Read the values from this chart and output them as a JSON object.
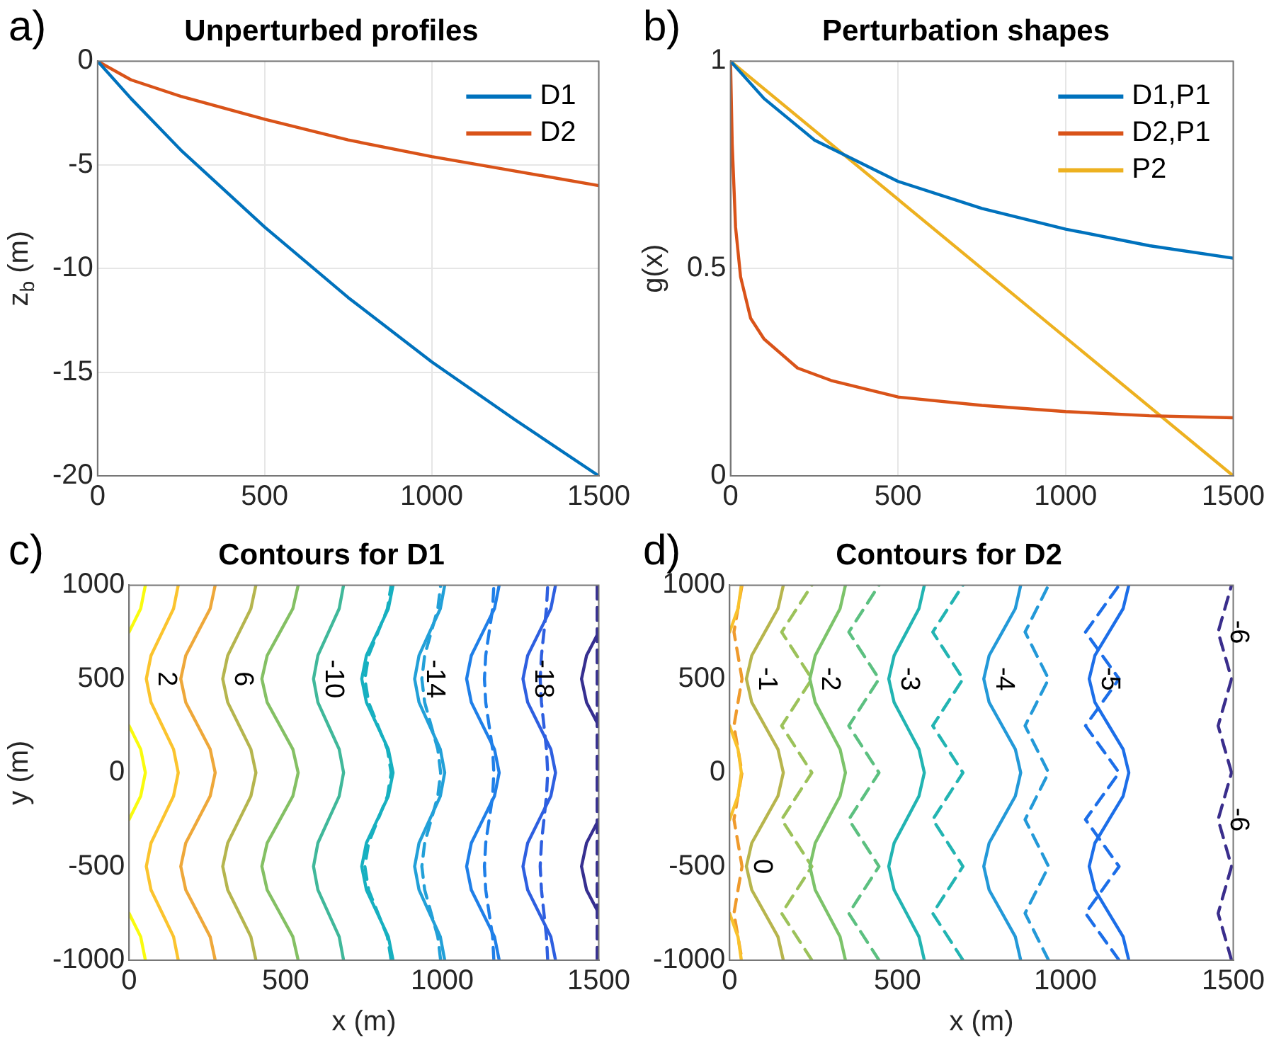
{
  "chart_data": [
    {
      "type": "line",
      "title": "Unperturbed profiles",
      "ylabel": "z$_{b}$ (m)",
      "annotations": [
        "a)"
      ],
      "xlim": [
        0,
        1500
      ],
      "xticks": [
        0,
        500,
        1000,
        1500
      ],
      "ylim": [
        -20,
        0
      ],
      "yticks": [
        -20,
        -15,
        -10,
        -5,
        0
      ],
      "grid": true,
      "legend": "top right",
      "line_style": "solid",
      "series": [
        {
          "name": "D1",
          "color": "#0072bd",
          "x": [
            0,
            100,
            250,
            500,
            750,
            1000,
            1250,
            1500
          ],
          "values": [
            0,
            -1.8,
            -4.3,
            -8,
            -11.4,
            -14.5,
            -17.3,
            -20
          ]
        },
        {
          "name": "D2",
          "color": "#d95319",
          "x": [
            0,
            100,
            250,
            500,
            750,
            1000,
            1250,
            1500
          ],
          "values": [
            0,
            -0.9,
            -1.7,
            -2.8,
            -3.8,
            -4.6,
            -5.3,
            -6
          ]
        }
      ]
    },
    {
      "type": "line",
      "title": "Perturbation shapes",
      "ylabel": "g(x)",
      "annotations": [
        "b)"
      ],
      "xlim": [
        0,
        1500
      ],
      "xticks": [
        0,
        500,
        1000,
        1500
      ],
      "ylim": [
        0,
        1
      ],
      "yticks": [
        0,
        0.5,
        1
      ],
      "grid": true,
      "legend": "top right",
      "line_style": "solid",
      "series": [
        {
          "name": "D1,P1",
          "color": "#0072bd",
          "x": [
            0,
            100,
            250,
            500,
            750,
            1000,
            1250,
            1500
          ],
          "values": [
            1,
            0.91,
            0.81,
            0.71,
            0.645,
            0.595,
            0.555,
            0.525
          ]
        },
        {
          "name": "D2,P1",
          "color": "#d95319",
          "x": [
            0,
            5,
            15,
            30,
            60,
            100,
            200,
            300,
            500,
            750,
            1000,
            1250,
            1500
          ],
          "values": [
            1,
            0.8,
            0.6,
            0.48,
            0.38,
            0.33,
            0.26,
            0.23,
            0.19,
            0.17,
            0.155,
            0.145,
            0.14
          ]
        },
        {
          "name": "P2",
          "color": "#edb120",
          "x": [
            0,
            1500
          ],
          "values": [
            1,
            0
          ]
        }
      ]
    },
    {
      "type": "line",
      "title": "Contours for D1",
      "xlabel": "x (m)",
      "ylabel": "y (m)",
      "xlim": [
        0,
        1500
      ],
      "xticks": [
        0,
        500,
        1000,
        1500
      ],
      "ylim": [
        -1000,
        1000
      ],
      "yticks": [
        -1000,
        -500,
        0,
        500,
        1000
      ],
      "annotations": [
        "c)"
      ],
      "series": [
        {
          "color": "#f9fb0e",
          "line_style": "solid",
          "x": [
            52,
            37,
            0,
            null,
            null,
            null,
            0,
            37,
            52,
            37,
            0,
            null,
            null,
            null,
            0,
            37,
            52
          ],
          "values": [
            -1000,
            -875,
            -750,
            null,
            null,
            null,
            -250,
            -125,
            0,
            125,
            250,
            null,
            null,
            null,
            750,
            875,
            1000
          ]
        },
        {
          "name": "2",
          "color": "#fbc42e",
          "line_style": "solid",
          "x": [
            157,
            142,
            106,
            70,
            55,
            70,
            106,
            142,
            157,
            142,
            106,
            70,
            55,
            70,
            106,
            142,
            157
          ],
          "values": [
            -1000,
            -875,
            -750,
            -625,
            -500,
            -375,
            -250,
            -125,
            0,
            125,
            250,
            375,
            500,
            625,
            750,
            875,
            1000
          ]
        },
        {
          "color": "#eea83a",
          "line_style": "solid",
          "x": [
            275,
            259,
            220,
            181,
            165,
            181,
            220,
            259,
            275,
            259,
            220,
            181,
            165,
            181,
            220,
            259,
            275
          ],
          "values": [
            -1000,
            -875,
            -750,
            -625,
            -500,
            -375,
            -250,
            -125,
            0,
            125,
            250,
            375,
            500,
            625,
            750,
            875,
            1000
          ]
        },
        {
          "name": "6",
          "color": "#b5b54e",
          "line_style": "solid",
          "x": [
            405,
            389,
            352,
            315,
            299,
            315,
            352,
            389,
            405,
            389,
            352,
            315,
            299,
            315,
            352,
            389,
            405
          ],
          "values": [
            -1000,
            -875,
            -750,
            -625,
            -500,
            -375,
            -250,
            -125,
            0,
            125,
            250,
            375,
            500,
            625,
            750,
            875,
            1000
          ]
        },
        {
          "color": "#84c064",
          "line_style": "solid",
          "x": [
            540,
            523,
            482,
            441,
            424,
            441,
            482,
            523,
            540,
            523,
            482,
            441,
            424,
            441,
            482,
            523,
            540
          ],
          "values": [
            -1000,
            -875,
            -750,
            -625,
            -500,
            -375,
            -250,
            -125,
            0,
            125,
            250,
            375,
            500,
            625,
            750,
            875,
            1000
          ]
        },
        {
          "name": "-10",
          "color": "#40b89a",
          "line_style": "solid",
          "x": [
            685,
            671,
            637,
            603,
            589,
            603,
            637,
            671,
            685,
            671,
            637,
            603,
            589,
            603,
            637,
            671,
            685
          ],
          "values": [
            -1000,
            -875,
            -750,
            -625,
            -500,
            -375,
            -250,
            -125,
            0,
            125,
            250,
            375,
            500,
            625,
            750,
            875,
            1000
          ]
        },
        {
          "color": "#17b0c0",
          "line_style": "solid",
          "x": [
            843,
            828,
            793,
            758,
            743,
            758,
            793,
            828,
            843,
            828,
            793,
            758,
            743,
            758,
            793,
            828,
            843
          ],
          "values": [
            -1000,
            -875,
            -750,
            -625,
            -500,
            -375,
            -250,
            -125,
            0,
            125,
            250,
            375,
            500,
            625,
            750,
            875,
            1000
          ]
        },
        {
          "name": "-14",
          "color": "#22a0d8",
          "line_style": "solid",
          "x": [
            1008,
            994,
            960,
            926,
            912,
            926,
            960,
            994,
            1008,
            994,
            960,
            926,
            912,
            926,
            960,
            994,
            1008
          ],
          "values": [
            -1000,
            -875,
            -750,
            -625,
            -500,
            -375,
            -250,
            -125,
            0,
            125,
            250,
            375,
            500,
            625,
            750,
            875,
            1000
          ]
        },
        {
          "color": "#1f7fe8",
          "line_style": "solid",
          "x": [
            1182,
            1167,
            1130,
            1093,
            1078,
            1093,
            1130,
            1167,
            1182,
            1167,
            1130,
            1093,
            1078,
            1093,
            1130,
            1167,
            1182
          ],
          "values": [
            -1000,
            -875,
            -750,
            -625,
            -500,
            -375,
            -250,
            -125,
            0,
            125,
            250,
            375,
            500,
            625,
            750,
            875,
            1000
          ]
        },
        {
          "name": "-18",
          "color": "#2e5fe0",
          "line_style": "solid",
          "x": [
            1362,
            1347,
            1310,
            1273,
            1258,
            1273,
            1310,
            1347,
            1362,
            1347,
            1310,
            1273,
            1258,
            1273,
            1310,
            1347,
            1362
          ],
          "values": [
            -1000,
            -875,
            -750,
            -625,
            -500,
            -375,
            -250,
            -125,
            0,
            125,
            250,
            375,
            500,
            625,
            750,
            875,
            1000
          ]
        },
        {
          "color": "#362f90",
          "line_style": "solid",
          "x": [
            null,
            null,
            1500,
            1461,
            1445,
            1461,
            1500,
            null,
            null,
            null,
            1500,
            1461,
            1445,
            1461,
            1500,
            null,
            null
          ],
          "values": [
            null,
            null,
            -750,
            -625,
            -500,
            -375,
            -250,
            null,
            null,
            null,
            250,
            375,
            500,
            625,
            750,
            null,
            null
          ]
        },
        {
          "color": "#17b0c0",
          "line_style": "dashed",
          "x": [
            837,
            825,
            795,
            765,
            753,
            765,
            795,
            825,
            837,
            825,
            795,
            765,
            753,
            765,
            795,
            825,
            837
          ],
          "values": [
            -1000,
            -875,
            -750,
            -625,
            -500,
            -375,
            -250,
            -125,
            0,
            125,
            250,
            375,
            500,
            625,
            750,
            875,
            1000
          ]
        },
        {
          "color": "#22a0d8",
          "line_style": "dashed",
          "x": [
            995,
            986,
            965,
            944,
            935,
            944,
            965,
            986,
            995,
            986,
            965,
            944,
            935,
            944,
            965,
            986,
            995
          ],
          "values": [
            -1000,
            -875,
            -750,
            -625,
            -500,
            -375,
            -250,
            -125,
            0,
            125,
            250,
            375,
            500,
            625,
            750,
            875,
            1000
          ]
        },
        {
          "color": "#1f7fe8",
          "line_style": "dashed",
          "x": [
            1165,
            1161,
            1150,
            1139,
            1135,
            1139,
            1150,
            1161,
            1165,
            1161,
            1150,
            1139,
            1135,
            1139,
            1150,
            1161,
            1165
          ],
          "values": [
            -1000,
            -875,
            -750,
            -625,
            -500,
            -375,
            -250,
            -125,
            0,
            125,
            250,
            375,
            500,
            625,
            750,
            875,
            1000
          ]
        },
        {
          "color": "#2e5fe0",
          "line_style": "dashed",
          "x": [
            1337,
            1333,
            1325,
            1317,
            1313,
            1317,
            1325,
            1333,
            1337,
            1333,
            1325,
            1317,
            1313,
            1317,
            1325,
            1333,
            1337
          ],
          "values": [
            -1000,
            -875,
            -750,
            -625,
            -500,
            -375,
            -250,
            -125,
            0,
            125,
            250,
            375,
            500,
            625,
            750,
            875,
            1000
          ]
        },
        {
          "color": "#362f90",
          "line_style": "dashed",
          "x": [
            1495,
            1495,
            1495,
            1495,
            1495,
            1495,
            1495,
            1495,
            1495,
            1495,
            1495,
            1495,
            1495,
            1495,
            1495,
            1495,
            1495
          ],
          "values": [
            -1000,
            -875,
            -750,
            -625,
            -500,
            -375,
            -250,
            -125,
            0,
            125,
            250,
            375,
            500,
            625,
            750,
            875,
            1000
          ]
        }
      ]
    },
    {
      "type": "line",
      "title": "Contours for D2",
      "xlabel": "x (m)",
      "xlim": [
        0,
        1500
      ],
      "xticks": [
        0,
        500,
        1000,
        1500
      ],
      "ylim": [
        -1000,
        1000
      ],
      "yticks": [
        -1000,
        -500,
        0,
        500,
        1000
      ],
      "annotations": [
        "d)"
      ],
      "series": [
        {
          "color": "#f9c22c",
          "line_style": "solid",
          "x": [
            35,
            25,
            0,
            null,
            null,
            null,
            0,
            25,
            35,
            25,
            0,
            null,
            null,
            null,
            0,
            25,
            35
          ],
          "values": [
            -1000,
            -875,
            -750,
            null,
            null,
            null,
            -250,
            -125,
            0,
            125,
            250,
            null,
            null,
            null,
            750,
            875,
            1000
          ]
        },
        {
          "name": "-1",
          "color": "#b7b54d",
          "line_style": "solid",
          "x": [
            160,
            144,
            105,
            66,
            50,
            66,
            105,
            144,
            160,
            144,
            105,
            66,
            50,
            66,
            105,
            144,
            160
          ],
          "values": [
            -1000,
            -875,
            -750,
            -625,
            -500,
            -375,
            -250,
            -125,
            0,
            125,
            250,
            375,
            500,
            625,
            750,
            875,
            1000
          ]
        },
        {
          "name": "-2",
          "color": "#7cc36a",
          "line_style": "solid",
          "x": [
            345,
            329,
            292,
            255,
            239,
            255,
            292,
            329,
            345,
            329,
            292,
            255,
            239,
            255,
            292,
            329,
            345
          ],
          "values": [
            -1000,
            -875,
            -750,
            -625,
            -500,
            -375,
            -250,
            -125,
            0,
            125,
            250,
            375,
            500,
            625,
            750,
            875,
            1000
          ]
        },
        {
          "name": "-3",
          "color": "#22b4b2",
          "line_style": "solid",
          "x": [
            580,
            564,
            527,
            490,
            474,
            490,
            527,
            564,
            580,
            564,
            527,
            490,
            474,
            490,
            527,
            564,
            580
          ],
          "values": [
            -1000,
            -875,
            -750,
            -625,
            -500,
            -375,
            -250,
            -125,
            0,
            125,
            250,
            375,
            500,
            625,
            750,
            875,
            1000
          ]
        },
        {
          "name": "-4",
          "color": "#2399d8",
          "line_style": "solid",
          "x": [
            867,
            851,
            812,
            773,
            757,
            773,
            812,
            851,
            867,
            851,
            812,
            773,
            757,
            773,
            812,
            851,
            867
          ],
          "values": [
            -1000,
            -875,
            -750,
            -625,
            -500,
            -375,
            -250,
            -125,
            0,
            125,
            250,
            375,
            500,
            625,
            750,
            875,
            1000
          ]
        },
        {
          "name": "-5",
          "color": "#1c6ee8",
          "line_style": "solid",
          "x": [
            1189,
            1172,
            1130,
            1088,
            1071,
            1088,
            1130,
            1172,
            1189,
            1172,
            1130,
            1088,
            1071,
            1088,
            1130,
            1172,
            1189
          ],
          "values": [
            -1000,
            -875,
            -750,
            -625,
            -500,
            -375,
            -250,
            -125,
            0,
            125,
            250,
            375,
            500,
            625,
            750,
            875,
            1000
          ]
        },
        {
          "name": "0",
          "color": "#ef9a2c",
          "line_style": "dashed",
          "x": [
            37,
            25,
            13,
            25,
            37,
            25,
            13,
            25,
            37,
            25,
            13,
            25,
            37,
            25,
            13,
            25,
            37
          ],
          "values": [
            1000,
            875,
            750,
            625,
            500,
            375,
            250,
            125,
            0,
            -125,
            -250,
            -375,
            -500,
            -625,
            -750,
            -875,
            -1000
          ]
        },
        {
          "color": "#9cc25a",
          "line_style": "dashed",
          "x": [
            245,
            200,
            155,
            200,
            245,
            200,
            155,
            200,
            245,
            200,
            155,
            200,
            245,
            200,
            155,
            200,
            245
          ],
          "values": [
            -1000,
            -875,
            -750,
            -625,
            -500,
            -375,
            -250,
            -125,
            0,
            125,
            250,
            375,
            500,
            625,
            750,
            875,
            1000
          ]
        },
        {
          "color": "#5cc080",
          "line_style": "dashed",
          "x": [
            445,
            400,
            355,
            400,
            445,
            400,
            355,
            400,
            445,
            400,
            355,
            400,
            445,
            400,
            355,
            400,
            445
          ],
          "values": [
            -1000,
            -875,
            -750,
            -625,
            -500,
            -375,
            -250,
            -125,
            0,
            125,
            250,
            375,
            500,
            625,
            750,
            875,
            1000
          ]
        },
        {
          "color": "#22b4b2",
          "line_style": "dashed",
          "x": [
            695,
            650,
            605,
            650,
            695,
            650,
            605,
            650,
            695,
            650,
            605,
            650,
            695,
            650,
            605,
            650,
            695
          ],
          "values": [
            -1000,
            -875,
            -750,
            -625,
            -500,
            -375,
            -250,
            -125,
            0,
            125,
            250,
            375,
            500,
            625,
            750,
            875,
            1000
          ]
        },
        {
          "color": "#2399d8",
          "line_style": "dashed",
          "x": [
            950,
            915,
            880,
            915,
            950,
            915,
            880,
            915,
            950,
            915,
            880,
            915,
            950,
            915,
            880,
            915,
            950
          ],
          "values": [
            -1000,
            -875,
            -750,
            -625,
            -500,
            -375,
            -250,
            -125,
            0,
            125,
            250,
            375,
            500,
            625,
            750,
            875,
            1000
          ]
        },
        {
          "color": "#1c6ee8",
          "line_style": "dashed",
          "x": [
            1160,
            1110,
            1060,
            1110,
            1160,
            1110,
            1060,
            1110,
            1160,
            1110,
            1060,
            1110,
            1160,
            1110,
            1060,
            1110,
            1160
          ],
          "values": [
            -1000,
            -875,
            -750,
            -625,
            -500,
            -375,
            -250,
            -125,
            0,
            125,
            250,
            375,
            500,
            625,
            750,
            875,
            1000
          ]
        },
        {
          "name": "-6",
          "color": "#3a2e8c",
          "line_style": "dashed",
          "x": [
            1495,
            1475,
            1455,
            1475,
            1495,
            1475,
            1455,
            1475,
            1495
          ],
          "values": [
            -1000,
            -875,
            -750,
            -625,
            -500,
            -375,
            -250,
            -125,
            0
          ]
        },
        {
          "name": "-6",
          "color": "#3a2e8c",
          "line_style": "dashed",
          "x": [
            1495,
            1475,
            1455,
            1475,
            1495,
            1475,
            1455,
            1475,
            1495
          ],
          "values": [
            0,
            125,
            250,
            375,
            500,
            625,
            750,
            875,
            1000
          ]
        }
      ]
    }
  ]
}
